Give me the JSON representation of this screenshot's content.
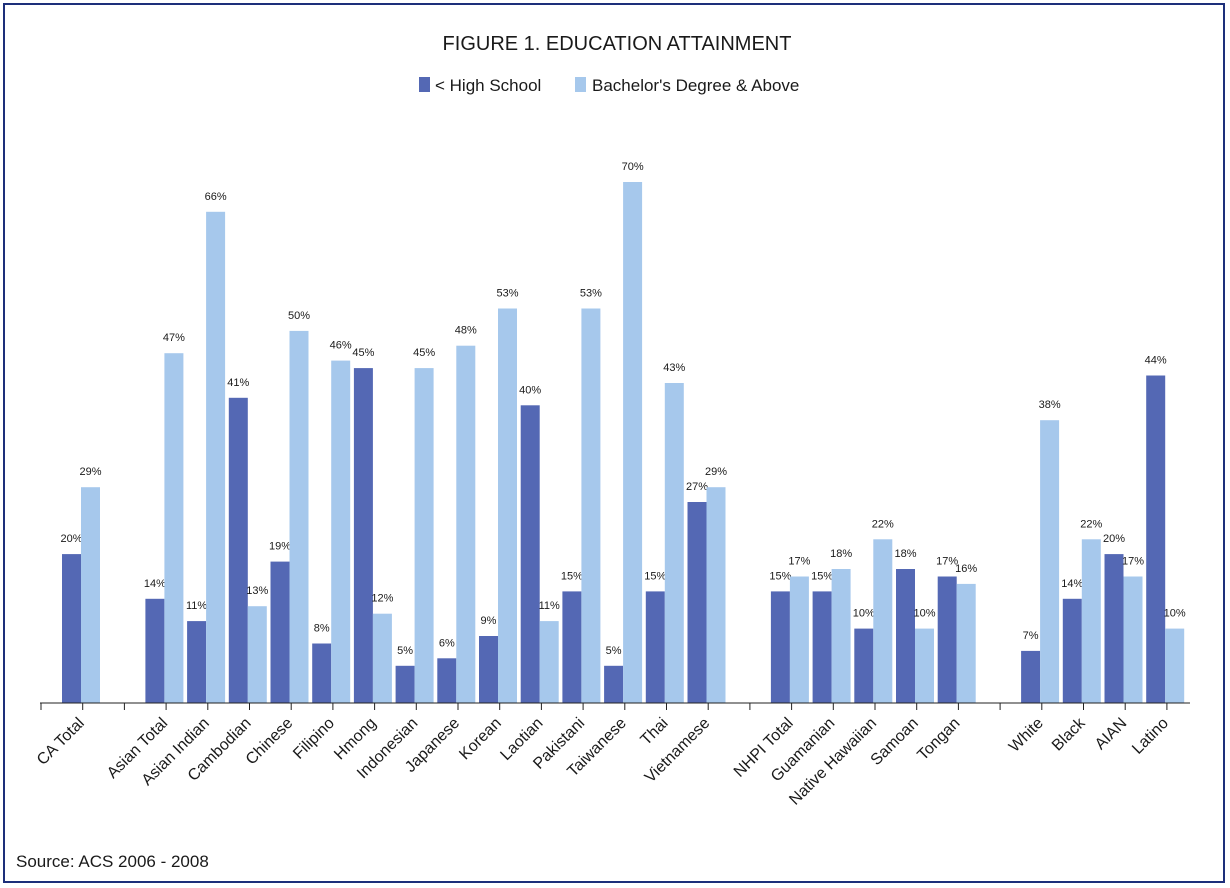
{
  "chart_data": {
    "type": "bar",
    "title": "FIGURE 1. EDUCATION ATTAINMENT",
    "source": "Source: ACS 2006 - 2008",
    "legend_placement": "top-center",
    "ylim": [
      0,
      70
    ],
    "grid": false,
    "value_suffix": "%",
    "colors": {
      "less_hs": "#5468b4",
      "bachelors": "#a6c8ec"
    },
    "series": [
      {
        "name": "< High School",
        "key": "less_hs"
      },
      {
        "name": "Bachelor's Degree & Above",
        "key": "bachelors"
      }
    ],
    "groups": [
      {
        "categories": [
          {
            "label": "CA Total",
            "less_hs": 20,
            "bachelors": 29
          }
        ]
      },
      {
        "categories": [
          {
            "label": "Asian Total",
            "less_hs": 14,
            "bachelors": 47
          },
          {
            "label": "Asian Indian",
            "less_hs": 11,
            "bachelors": 66
          },
          {
            "label": "Cambodian",
            "less_hs": 41,
            "bachelors": 13
          },
          {
            "label": "Chinese",
            "less_hs": 19,
            "bachelors": 50
          },
          {
            "label": "Filipino",
            "less_hs": 8,
            "bachelors": 46
          },
          {
            "label": "Hmong",
            "less_hs": 45,
            "bachelors": 12
          },
          {
            "label": "Indonesian",
            "less_hs": 5,
            "bachelors": 45
          },
          {
            "label": "Japanese",
            "less_hs": 6,
            "bachelors": 48
          },
          {
            "label": "Korean",
            "less_hs": 9,
            "bachelors": 53
          },
          {
            "label": "Laotian",
            "less_hs": 40,
            "bachelors": 11
          },
          {
            "label": "Pakistani",
            "less_hs": 15,
            "bachelors": 53
          },
          {
            "label": "Taiwanese",
            "less_hs": 5,
            "bachelors": 70
          },
          {
            "label": "Thai",
            "less_hs": 15,
            "bachelors": 43
          },
          {
            "label": "Vietnamese",
            "less_hs": 27,
            "bachelors": 29
          }
        ]
      },
      {
        "categories": [
          {
            "label": "NHPI Total",
            "less_hs": 15,
            "bachelors": 17
          },
          {
            "label": "Guamanian",
            "less_hs": 15,
            "bachelors": 18
          },
          {
            "label": "Native Hawaiian",
            "less_hs": 10,
            "bachelors": 22
          },
          {
            "label": "Samoan",
            "less_hs": 18,
            "bachelors": 10
          },
          {
            "label": "Tongan",
            "less_hs": 17,
            "bachelors": 16
          }
        ]
      },
      {
        "categories": [
          {
            "label": "White",
            "less_hs": 7,
            "bachelors": 38
          },
          {
            "label": "Black",
            "less_hs": 14,
            "bachelors": 22
          },
          {
            "label": "AIAN",
            "less_hs": 20,
            "bachelors": 17
          },
          {
            "label": "Latino",
            "less_hs": 44,
            "bachelors": 10
          }
        ]
      }
    ]
  }
}
